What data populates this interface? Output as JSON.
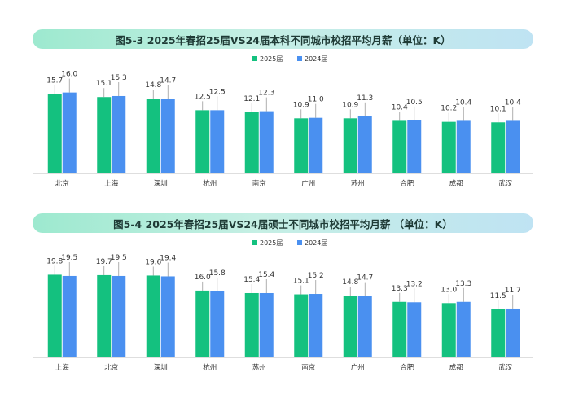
{
  "colors": {
    "y2025": "#14c17f",
    "y2024": "#4a90f0",
    "axis": "#bdbdbd",
    "leader": "#9a9a9a"
  },
  "chart_data": [
    {
      "type": "bar",
      "title": "图5-3 2025年春招25届VS24届本科不同城市校招平均月薪（单位：K）",
      "categories": [
        "北京",
        "上海",
        "深圳",
        "杭州",
        "南京",
        "广州",
        "苏州",
        "合肥",
        "成都",
        "武汉"
      ],
      "series": [
        {
          "name": "2025届",
          "values": [
            15.7,
            15.1,
            14.8,
            12.5,
            12.1,
            10.9,
            10.9,
            10.4,
            10.2,
            10.1
          ]
        },
        {
          "name": "2024届",
          "values": [
            16.0,
            15.3,
            14.7,
            12.5,
            12.3,
            11.0,
            11.3,
            10.5,
            10.4,
            10.4
          ]
        }
      ],
      "legend_position": "top-center",
      "grid": false
    },
    {
      "type": "bar",
      "title": "图5-4 2025年春招25届VS24届硕士不同城市校招平均月薪 （单位：K）",
      "categories": [
        "上海",
        "北京",
        "深圳",
        "杭州",
        "苏州",
        "南京",
        "广州",
        "合肥",
        "成都",
        "武汉"
      ],
      "series": [
        {
          "name": "2025届",
          "values": [
            19.8,
            19.7,
            19.6,
            16.0,
            15.4,
            15.1,
            14.8,
            13.3,
            13.0,
            11.5
          ]
        },
        {
          "name": "2024届",
          "values": [
            19.5,
            19.5,
            19.4,
            15.8,
            15.4,
            15.2,
            14.7,
            13.2,
            13.3,
            11.7
          ]
        }
      ],
      "legend_position": "top-center",
      "grid": false
    }
  ]
}
